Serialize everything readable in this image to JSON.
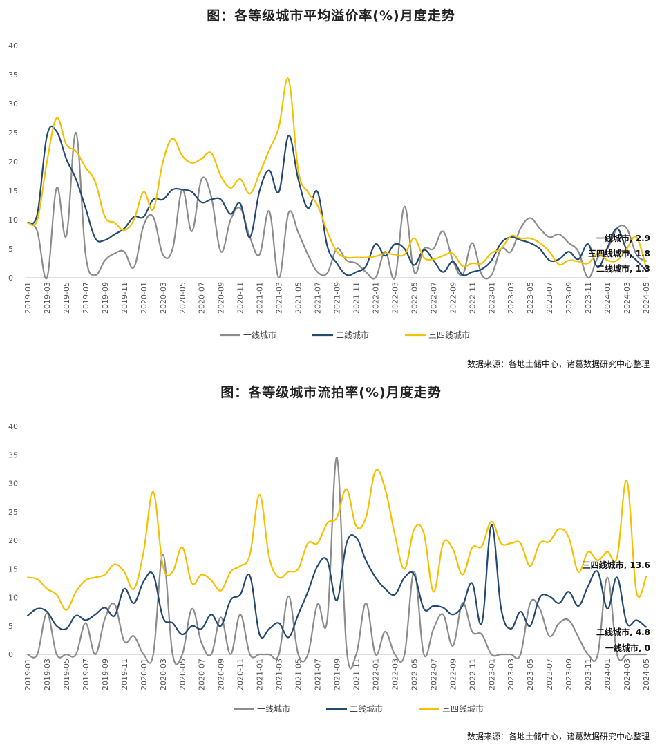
{
  "chart_data": [
    {
      "type": "line",
      "title": "图：各等级城市平均溢价率(%)月度走势",
      "source": "数据来源：各地土储中心，诸葛数据研究中心整理",
      "ylim": [
        0,
        40
      ],
      "yticks": [
        0,
        5,
        10,
        15,
        20,
        25,
        30,
        35,
        40
      ],
      "grid": false,
      "legend_position": "bottom",
      "x": [
        "2019-01",
        "2019-02",
        "2019-03",
        "2019-04",
        "2019-05",
        "2019-06",
        "2019-07",
        "2019-08",
        "2019-09",
        "2019-10",
        "2019-11",
        "2019-12",
        "2020-01",
        "2020-02",
        "2020-03",
        "2020-04",
        "2020-05",
        "2020-06",
        "2020-07",
        "2020-08",
        "2020-09",
        "2020-10",
        "2020-11",
        "2020-12",
        "2021-01",
        "2021-02",
        "2021-03",
        "2021-04",
        "2021-05",
        "2021-06",
        "2021-07",
        "2021-08",
        "2021-09",
        "2021-10",
        "2021-11",
        "2021-12",
        "2022-01",
        "2022-02",
        "2022-03",
        "2022-04",
        "2022-05",
        "2022-06",
        "2022-07",
        "2022-08",
        "2022-09",
        "2022-10",
        "2022-11",
        "2022-12",
        "2023-01",
        "2023-02",
        "2023-03",
        "2023-04",
        "2023-05",
        "2023-06",
        "2023-07",
        "2023-08",
        "2023-09",
        "2023-10",
        "2023-11",
        "2023-12",
        "2024-01",
        "2024-02",
        "2024-03",
        "2024-04",
        "2024-05"
      ],
      "x_tick_labels": [
        "2019-01",
        "2019-03",
        "2019-05",
        "2019-07",
        "2019-09",
        "2019-11",
        "2020-01",
        "2020-03",
        "2020-05",
        "2020-07",
        "2020-09",
        "2020-11",
        "2021-01",
        "2021-03",
        "2021-05",
        "2021-07",
        "2021-09",
        "2021-11",
        "2022-01",
        "2022-03",
        "2022-05",
        "2022-07",
        "2022-09",
        "2022-11",
        "2023-01",
        "2023-03",
        "2023-05",
        "2023-07",
        "2023-09",
        "2023-11",
        "2024-01",
        "2024-03",
        "2024-05"
      ],
      "series": [
        {
          "name": "一线城市",
          "color": "#8c8c8c",
          "end_label": "一线城市, 2.9",
          "values": [
            9.5,
            8,
            0,
            15.5,
            7.2,
            25,
            4,
            0.5,
            3,
            4.2,
            4.5,
            1.8,
            9,
            10.5,
            4,
            5,
            15.2,
            8,
            17,
            14,
            4.5,
            10,
            12,
            7,
            4,
            11.5,
            0,
            11.2,
            7.8,
            4,
            1,
            0.8,
            5,
            3,
            2.5,
            1,
            0,
            4.5,
            0,
            12.3,
            1,
            5,
            5,
            8,
            3,
            0.5,
            6,
            0.5,
            0.5,
            5,
            4.5,
            8.5,
            10.3,
            8.5,
            7,
            7.5,
            6,
            4.5,
            0,
            3.5,
            5,
            8.5,
            8.5,
            4,
            2.9
          ]
        },
        {
          "name": "二线城市",
          "color": "#244a72",
          "end_label": "二线城市, 1.3",
          "values": [
            9.5,
            11,
            24.5,
            25.2,
            20.5,
            17,
            12,
            6.8,
            6.5,
            7.5,
            8.5,
            10.5,
            10.5,
            13.5,
            13.5,
            15.2,
            15.2,
            14.8,
            13,
            13.5,
            13.5,
            11,
            12.8,
            7,
            15,
            18.5,
            14.8,
            24.5,
            17,
            12,
            14.8,
            5.5,
            2.5,
            0.5,
            1,
            2,
            5.8,
            3.8,
            5.8,
            5,
            2.2,
            4.8,
            3,
            1,
            2.8,
            0.5,
            1,
            1.5,
            3,
            6,
            7,
            6.5,
            6,
            5,
            3,
            3.2,
            4.5,
            3.2,
            5.8,
            1.8,
            5.2,
            8.5,
            4.8,
            3,
            1.3
          ]
        },
        {
          "name": "三四线城市",
          "color": "#f5c000",
          "end_label": "三四线城市, 1.8",
          "values": [
            9.5,
            10,
            20,
            27.5,
            23,
            21.8,
            19,
            16.5,
            10.5,
            9.5,
            8.2,
            10,
            14.8,
            11.8,
            20,
            24,
            21,
            19.8,
            20.5,
            21.5,
            17.5,
            15.5,
            17,
            14.5,
            18,
            22,
            26,
            34.2,
            18.5,
            14.8,
            12.5,
            8,
            4.5,
            3.5,
            3.5,
            3.5,
            3.7,
            4.2,
            4,
            4,
            6.8,
            3.5,
            3.2,
            3.8,
            4.2,
            2,
            2.5,
            2.5,
            4.3,
            5,
            7.2,
            6.8,
            6.8,
            6,
            4.5,
            2.3,
            3,
            2.8,
            2.5,
            4.2,
            3,
            3,
            5,
            7,
            1.8
          ]
        }
      ]
    },
    {
      "type": "line",
      "title": "图：各等级城市流拍率(%)月度走势",
      "source": "数据来源：各地土储中心，诸葛数据研究中心整理",
      "ylim": [
        0,
        40
      ],
      "yticks": [
        0,
        5,
        10,
        15,
        20,
        25,
        30,
        35,
        40
      ],
      "grid": false,
      "legend_position": "bottom",
      "x": [
        "2019-01",
        "2019-02",
        "2019-03",
        "2019-04",
        "2019-05",
        "2019-06",
        "2019-07",
        "2019-08",
        "2019-09",
        "2019-10",
        "2019-11",
        "2019-12",
        "2020-01",
        "2020-02",
        "2020-03",
        "2020-04",
        "2020-05",
        "2020-06",
        "2020-07",
        "2020-08",
        "2020-09",
        "2020-10",
        "2020-11",
        "2020-12",
        "2021-01",
        "2021-02",
        "2021-03",
        "2021-04",
        "2021-05",
        "2021-06",
        "2021-07",
        "2021-08",
        "2021-09",
        "2021-10",
        "2021-11",
        "2021-12",
        "2022-01",
        "2022-02",
        "2022-03",
        "2022-04",
        "2022-05",
        "2022-06",
        "2022-07",
        "2022-08",
        "2022-09",
        "2022-10",
        "2022-11",
        "2022-12",
        "2023-01",
        "2023-02",
        "2023-03",
        "2023-04",
        "2023-05",
        "2023-06",
        "2023-07",
        "2023-08",
        "2023-09",
        "2023-10",
        "2023-11",
        "2023-12",
        "2024-01",
        "2024-02",
        "2024-03",
        "2024-04",
        "2024-05"
      ],
      "x_tick_labels": [
        "2019-01",
        "2019-03",
        "2019-05",
        "2019-07",
        "2019-09",
        "2019-11",
        "2020-01",
        "2020-03",
        "2020-05",
        "2020-07",
        "2020-09",
        "2020-11",
        "2021-01",
        "2021-03",
        "2021-05",
        "2021-07",
        "2021-09",
        "2021-11",
        "2022-01",
        "2022-03",
        "2022-05",
        "2022-07",
        "2022-09",
        "2022-11",
        "2023-01",
        "2023-03",
        "2023-05",
        "2023-07",
        "2023-09",
        "2023-11",
        "2024-01",
        "2024-03",
        "2024-05"
      ],
      "series": [
        {
          "name": "一线城市",
          "color": "#8c8c8c",
          "end_label": "一线城市, 0",
          "values": [
            0,
            0,
            7.2,
            0,
            0,
            0,
            5.5,
            0,
            6.3,
            8.8,
            2.3,
            3.2,
            0,
            0,
            17.5,
            0,
            0,
            8,
            2,
            0,
            6.5,
            0,
            7,
            0,
            0,
            0,
            0,
            10.2,
            0,
            0,
            8.8,
            6,
            34.5,
            1,
            0,
            9,
            0,
            4,
            0,
            0,
            14.5,
            0,
            4.5,
            7,
            1.5,
            9,
            4,
            3.5,
            0,
            0,
            0,
            0,
            9,
            8,
            3.2,
            5.5,
            6,
            3,
            0,
            0,
            13.5,
            0,
            0,
            0,
            0
          ]
        },
        {
          "name": "二线城市",
          "color": "#244a72",
          "end_label": "二线城市, 4.8",
          "values": [
            6.8,
            8,
            7.5,
            5,
            4.5,
            6.8,
            6,
            7,
            8.2,
            6.8,
            11.5,
            9,
            12.8,
            14,
            6.5,
            5.5,
            3.5,
            5,
            4.5,
            7,
            5,
            9.5,
            10.5,
            13.8,
            3.5,
            4.5,
            5.5,
            3,
            7,
            11,
            15.5,
            16.5,
            9.5,
            19.5,
            20.5,
            16.5,
            13.5,
            11.5,
            10.5,
            13.5,
            14,
            8,
            8.5,
            8.2,
            7,
            8.5,
            12.5,
            5.5,
            22.7,
            8,
            4.5,
            7.5,
            5,
            10,
            10.2,
            9,
            11,
            8.5,
            12,
            14.5,
            8,
            13.5,
            5.5,
            6,
            4.8
          ]
        },
        {
          "name": "三四线城市",
          "color": "#f5c000",
          "end_label": "三四线城市, 13.6",
          "values": [
            13.5,
            13.2,
            11.5,
            10.5,
            7.8,
            11,
            13,
            13.5,
            14,
            15.8,
            14.5,
            11.5,
            18,
            28.5,
            15.5,
            14.5,
            18.8,
            12.5,
            14,
            13,
            11.2,
            14.5,
            15.5,
            17.5,
            28,
            17,
            13.5,
            14.5,
            15,
            19.5,
            19.5,
            23,
            24,
            29,
            22.5,
            24,
            32.2,
            29,
            21,
            15,
            22,
            21.2,
            11,
            19.5,
            18.5,
            14,
            18.7,
            19,
            23.3,
            19.5,
            19.5,
            19.5,
            15.5,
            19.5,
            19.8,
            22,
            20.5,
            14.5,
            18,
            16.5,
            18,
            17,
            30.5,
            11,
            13.6
          ]
        }
      ]
    }
  ]
}
